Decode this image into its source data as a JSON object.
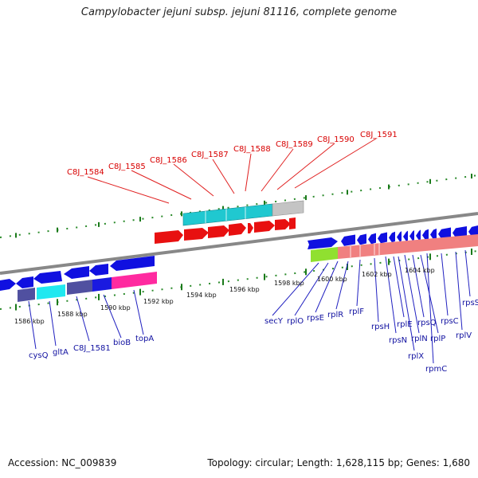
{
  "title": "Campylobacter jejuni subsp. jejuni 81116, complete genome",
  "footer": {
    "accession": "Accession: NC_009839",
    "summary": "Topology: circular; Length: 1,628,115 bp; Genes: 1,680"
  },
  "colors": {
    "red_gene": "#e81010",
    "blue_gene": "#1010e0",
    "cyan_band": "#20c8d0",
    "grey_band": "#c0c0c0",
    "magenta_band": "#ff2aa0",
    "navy_band": "#5050a0",
    "pink_band": "#f08080",
    "lime_band": "#90e030",
    "tick_green": "#1a7a1a",
    "label_red": "#d80000",
    "label_blue": "#1010a0"
  },
  "scale_ticks": [
    "1586 kbp",
    "1588 kbp",
    "1590 kbp",
    "1592 kbp",
    "1594 kbp",
    "1596 kbp",
    "1598 kbp",
    "1600 kbp",
    "1602 kbp",
    "1604 kbp"
  ],
  "top_labels": [
    "C8J_1584",
    "C8J_1585",
    "C8J_1586",
    "C8J_1587",
    "C8J_1588",
    "C8J_1589",
    "C8J_1590",
    "C8J_1591"
  ],
  "bottom_labels_left": [
    "cysQ",
    "gltA",
    "C8J_1581",
    "bioB",
    "topA"
  ],
  "bottom_labels_right": [
    "secY",
    "rplO",
    "rpsE",
    "rplR",
    "rplF",
    "rpsH",
    "rpsN",
    "rplE",
    "rplX",
    "rplN",
    "rpsQ",
    "rplP",
    "rpmC",
    "rpsC",
    "rplV",
    "rpsS"
  ]
}
